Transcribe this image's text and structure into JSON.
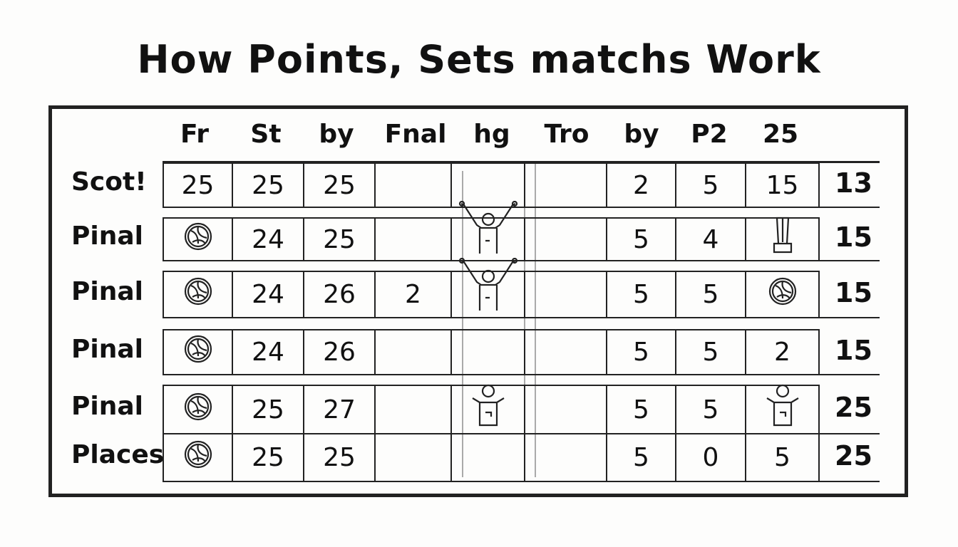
{
  "title": "How Points, Sets matchs Work",
  "headers": [
    "Fr",
    "St",
    "by",
    "Fnal",
    "hg",
    "Tro",
    "by",
    "P2",
    "25"
  ],
  "rows": [
    {
      "label": "Scot!",
      "cells": [
        "25",
        "25",
        "25",
        "",
        "",
        "",
        "2",
        "5",
        "15"
      ],
      "total": "13"
    },
    {
      "label": "Pinal",
      "cells": [
        {
          "icon": "volleyball"
        },
        "24",
        "25",
        "",
        {
          "icon": "cheering-player"
        },
        "",
        "5",
        "4",
        {
          "icon": "trophy"
        }
      ],
      "total": "15"
    },
    {
      "label": "Pinal",
      "cells": [
        {
          "icon": "volleyball"
        },
        "24",
        "26",
        "2",
        {
          "icon": "cheering-player"
        },
        "",
        "5",
        "5",
        {
          "icon": "volleyball"
        }
      ],
      "total": "15"
    },
    {
      "label": "Pinal",
      "cells": [
        {
          "icon": "volleyball"
        },
        "24",
        "26",
        "",
        "",
        "",
        "5",
        "5",
        "2"
      ],
      "total": "15"
    },
    {
      "label": "Pinal",
      "cells": [
        {
          "icon": "volleyball"
        },
        "25",
        "27",
        "",
        {
          "icon": "player"
        },
        "",
        "5",
        "5",
        {
          "icon": "player"
        }
      ],
      "total": "25"
    },
    {
      "label": "Places",
      "cells": [
        {
          "icon": "volleyball"
        },
        "25",
        "25",
        "",
        "",
        "",
        "5",
        "0",
        "5"
      ],
      "total": "25"
    }
  ]
}
